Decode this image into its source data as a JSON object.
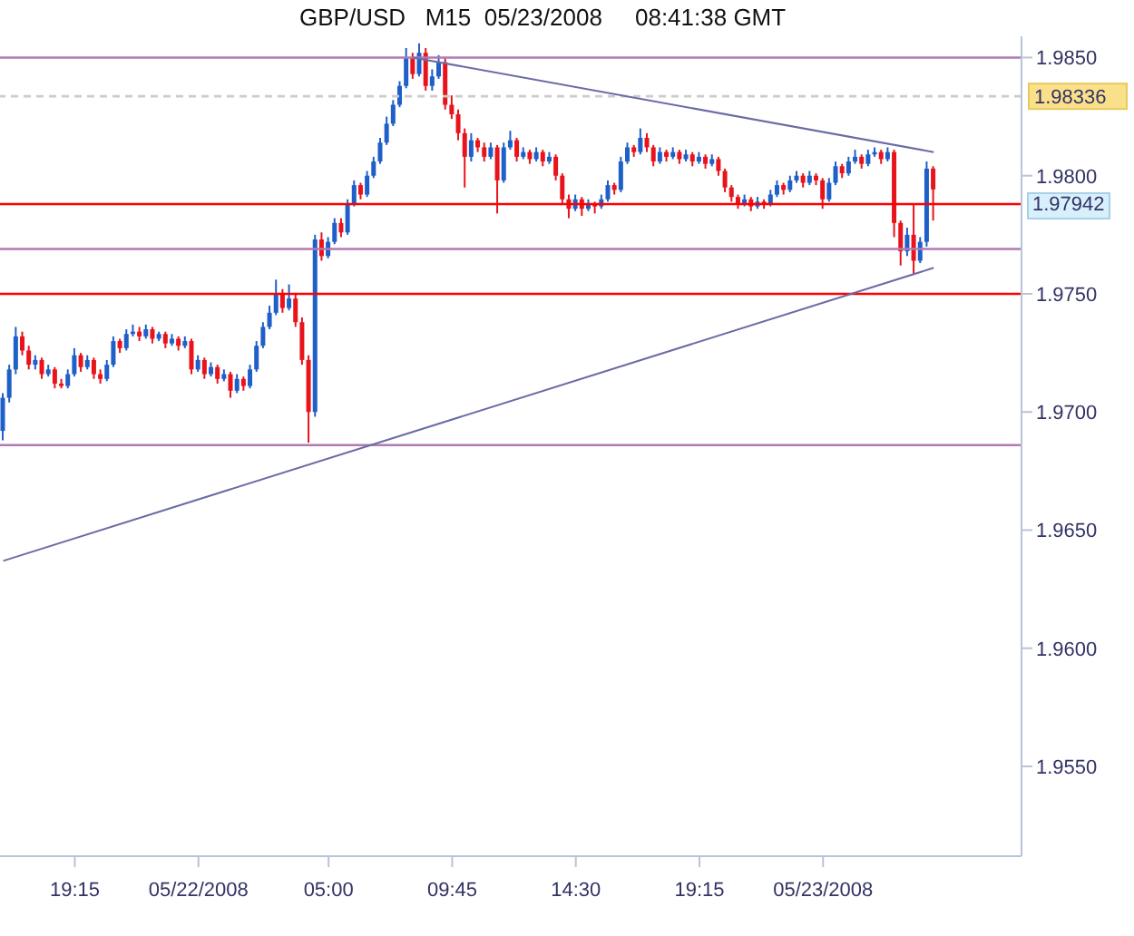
{
  "chart_data": {
    "type": "candlestick",
    "title": "GBP/USD   M15  05/23/2008     08:41:38 GMT",
    "categories": [
      null,
      null,
      null,
      null,
      null,
      null,
      null,
      null,
      null,
      null,
      null,
      "19:15",
      null,
      null,
      null,
      null,
      null,
      null,
      null,
      null,
      null,
      null,
      null,
      null,
      null,
      null,
      null,
      null,
      null,
      null,
      "05/22/2008",
      null,
      null,
      null,
      null,
      null,
      null,
      null,
      null,
      null,
      null,
      null,
      null,
      null,
      null,
      null,
      null,
      null,
      null,
      null,
      "05:00",
      null,
      null,
      null,
      null,
      null,
      null,
      null,
      null,
      null,
      null,
      null,
      null,
      null,
      null,
      null,
      null,
      null,
      null,
      "09:45",
      null,
      null,
      null,
      null,
      null,
      null,
      null,
      null,
      null,
      null,
      null,
      null,
      null,
      null,
      null,
      null,
      null,
      null,
      "14:30",
      null,
      null,
      null,
      null,
      null,
      null,
      null,
      null,
      null,
      null,
      null,
      null,
      null,
      null,
      null,
      null,
      null,
      null,
      "19:15",
      null,
      null,
      null,
      null,
      null,
      null,
      null,
      null,
      null,
      null,
      null,
      null,
      null,
      null,
      null,
      null,
      null,
      null,
      "05/23/2008",
      null,
      null,
      null,
      null,
      null,
      null,
      null,
      null,
      null,
      null,
      null,
      null,
      null,
      null,
      null,
      null,
      null
    ],
    "ohlc": [
      [
        1.9692,
        1.9708,
        1.9688,
        1.9706
      ],
      [
        1.9706,
        1.972,
        1.9704,
        1.9718
      ],
      [
        1.9718,
        1.9736,
        1.9716,
        1.9732
      ],
      [
        1.9732,
        1.9734,
        1.9724,
        1.9726
      ],
      [
        1.9726,
        1.9728,
        1.9718,
        1.972
      ],
      [
        1.972,
        1.9724,
        1.9718,
        1.9722
      ],
      [
        1.9722,
        1.9723,
        1.9714,
        1.9716
      ],
      [
        1.9716,
        1.972,
        1.9715,
        1.9718
      ],
      [
        1.9718,
        1.9719,
        1.971,
        1.9712
      ],
      [
        1.9712,
        1.9714,
        1.971,
        1.9711
      ],
      [
        1.9711,
        1.9718,
        1.971,
        1.9716
      ],
      [
        1.9716,
        1.9727,
        1.9715,
        1.9724
      ],
      [
        1.9724,
        1.9725,
        1.9717,
        1.9719
      ],
      [
        1.9719,
        1.9724,
        1.9718,
        1.9722
      ],
      [
        1.9722,
        1.9723,
        1.9714,
        1.9716
      ],
      [
        1.9716,
        1.9718,
        1.9712,
        1.9714
      ],
      [
        1.9714,
        1.9722,
        1.9713,
        1.972
      ],
      [
        1.972,
        1.9732,
        1.9719,
        1.973
      ],
      [
        1.973,
        1.9731,
        1.9725,
        1.9727
      ],
      [
        1.9727,
        1.9735,
        1.9726,
        1.9733
      ],
      [
        1.9733,
        1.9737,
        1.9732,
        1.9734
      ],
      [
        1.9734,
        1.9736,
        1.973,
        1.9732
      ],
      [
        1.9732,
        1.9737,
        1.9731,
        1.9735
      ],
      [
        1.9735,
        1.9736,
        1.9729,
        1.9731
      ],
      [
        1.9731,
        1.9734,
        1.973,
        1.9733
      ],
      [
        1.9733,
        1.9734,
        1.9727,
        1.9729
      ],
      [
        1.9729,
        1.9733,
        1.9728,
        1.9731
      ],
      [
        1.9731,
        1.9732,
        1.9726,
        1.9728
      ],
      [
        1.9728,
        1.9732,
        1.9727,
        1.973
      ],
      [
        1.973,
        1.9731,
        1.9716,
        1.9718
      ],
      [
        1.9718,
        1.9724,
        1.9717,
        1.9722
      ],
      [
        1.9722,
        1.9723,
        1.9714,
        1.9716
      ],
      [
        1.9716,
        1.9721,
        1.9715,
        1.9719
      ],
      [
        1.9719,
        1.972,
        1.9712,
        1.9714
      ],
      [
        1.9714,
        1.9718,
        1.9713,
        1.9716
      ],
      [
        1.9716,
        1.9717,
        1.9706,
        1.9709
      ],
      [
        1.9709,
        1.9716,
        1.9708,
        1.9714
      ],
      [
        1.9714,
        1.9715,
        1.9709,
        1.9711
      ],
      [
        1.9711,
        1.972,
        1.971,
        1.9718
      ],
      [
        1.9718,
        1.973,
        1.9717,
        1.9728
      ],
      [
        1.9728,
        1.9738,
        1.9727,
        1.9736
      ],
      [
        1.9736,
        1.9745,
        1.9735,
        1.9742
      ],
      [
        1.9742,
        1.9756,
        1.9741,
        1.975
      ],
      [
        1.975,
        1.9752,
        1.9742,
        1.9744
      ],
      [
        1.9744,
        1.9754,
        1.9743,
        1.9748
      ],
      [
        1.9748,
        1.975,
        1.9736,
        1.9738
      ],
      [
        1.9738,
        1.974,
        1.972,
        1.9722
      ],
      [
        1.9722,
        1.9724,
        1.9687,
        1.97
      ],
      [
        1.97,
        1.9775,
        1.9698,
        1.9773
      ],
      [
        1.9773,
        1.9776,
        1.9764,
        1.9766
      ],
      [
        1.9766,
        1.9774,
        1.9765,
        1.9772
      ],
      [
        1.9772,
        1.9782,
        1.9771,
        1.978
      ],
      [
        1.978,
        1.9782,
        1.9774,
        1.9776
      ],
      [
        1.9776,
        1.979,
        1.9775,
        1.9788
      ],
      [
        1.9788,
        1.9798,
        1.9787,
        1.9796
      ],
      [
        1.9796,
        1.9797,
        1.979,
        1.9792
      ],
      [
        1.9792,
        1.9802,
        1.9791,
        1.98
      ],
      [
        1.98,
        1.9808,
        1.9799,
        1.9806
      ],
      [
        1.9806,
        1.9816,
        1.9805,
        1.9814
      ],
      [
        1.9814,
        1.9825,
        1.9813,
        1.9822
      ],
      [
        1.9822,
        1.9832,
        1.9821,
        1.983
      ],
      [
        1.983,
        1.984,
        1.9829,
        1.9838
      ],
      [
        1.9838,
        1.9854,
        1.9837,
        1.985
      ],
      [
        1.985,
        1.9852,
        1.9841,
        1.9843
      ],
      [
        1.9843,
        1.9856,
        1.9842,
        1.9852
      ],
      [
        1.9852,
        1.9854,
        1.9836,
        1.9838
      ],
      [
        1.9838,
        1.9845,
        1.9836,
        1.9842
      ],
      [
        1.9842,
        1.9851,
        1.9841,
        1.9848
      ],
      [
        1.9848,
        1.985,
        1.9828,
        1.983
      ],
      [
        1.983,
        1.9834,
        1.9824,
        1.9826
      ],
      [
        1.9826,
        1.9828,
        1.9815,
        1.9818
      ],
      [
        1.9818,
        1.982,
        1.9795,
        1.9808
      ],
      [
        1.9808,
        1.9818,
        1.9806,
        1.9815
      ],
      [
        1.9815,
        1.9816,
        1.981,
        1.9812
      ],
      [
        1.9812,
        1.9814,
        1.9806,
        1.9808
      ],
      [
        1.9808,
        1.9814,
        1.9807,
        1.9812
      ],
      [
        1.9812,
        1.9813,
        1.9784,
        1.9798
      ],
      [
        1.9798,
        1.9814,
        1.9797,
        1.9812
      ],
      [
        1.9812,
        1.9819,
        1.9811,
        1.9815
      ],
      [
        1.9815,
        1.9816,
        1.9806,
        1.9808
      ],
      [
        1.9808,
        1.9812,
        1.9807,
        1.981
      ],
      [
        1.981,
        1.9811,
        1.9805,
        1.9807
      ],
      [
        1.9807,
        1.9812,
        1.9806,
        1.981
      ],
      [
        1.981,
        1.9811,
        1.9804,
        1.9806
      ],
      [
        1.9806,
        1.981,
        1.9805,
        1.9808
      ],
      [
        1.9808,
        1.9809,
        1.9798,
        1.98
      ],
      [
        1.98,
        1.9801,
        1.9788,
        1.979
      ],
      [
        1.979,
        1.9792,
        1.9782,
        1.9786
      ],
      [
        1.9786,
        1.9792,
        1.9785,
        1.979
      ],
      [
        1.979,
        1.9791,
        1.9783,
        1.9786
      ],
      [
        1.9786,
        1.979,
        1.9785,
        1.9788
      ],
      [
        1.9788,
        1.9789,
        1.9784,
        1.9787
      ],
      [
        1.9787,
        1.9792,
        1.9786,
        1.979
      ],
      [
        1.979,
        1.9798,
        1.9789,
        1.9796
      ],
      [
        1.9796,
        1.9797,
        1.9792,
        1.9794
      ],
      [
        1.9794,
        1.9808,
        1.9793,
        1.9806
      ],
      [
        1.9806,
        1.9814,
        1.9805,
        1.9812
      ],
      [
        1.9812,
        1.9813,
        1.9808,
        1.981
      ],
      [
        1.981,
        1.982,
        1.9809,
        1.9816
      ],
      [
        1.9816,
        1.9818,
        1.981,
        1.9812
      ],
      [
        1.9812,
        1.9813,
        1.9804,
        1.9806
      ],
      [
        1.9806,
        1.9812,
        1.9805,
        1.981
      ],
      [
        1.981,
        1.9811,
        1.9806,
        1.9808
      ],
      [
        1.9808,
        1.9812,
        1.9807,
        1.981
      ],
      [
        1.981,
        1.9811,
        1.9805,
        1.9807
      ],
      [
        1.9807,
        1.9811,
        1.9806,
        1.9809
      ],
      [
        1.9809,
        1.981,
        1.9804,
        1.9806
      ],
      [
        1.9806,
        1.981,
        1.9805,
        1.9808
      ],
      [
        1.9808,
        1.9809,
        1.9803,
        1.9805
      ],
      [
        1.9805,
        1.9809,
        1.9804,
        1.9807
      ],
      [
        1.9807,
        1.9808,
        1.98,
        1.9802
      ],
      [
        1.9802,
        1.9803,
        1.9793,
        1.9795
      ],
      [
        1.9795,
        1.9796,
        1.9789,
        1.9791
      ],
      [
        1.9791,
        1.9792,
        1.9786,
        1.9788
      ],
      [
        1.9788,
        1.9792,
        1.9787,
        1.979
      ],
      [
        1.979,
        1.9791,
        1.9785,
        1.9787
      ],
      [
        1.9787,
        1.9791,
        1.9786,
        1.9789
      ],
      [
        1.9789,
        1.979,
        1.9786,
        1.9788
      ],
      [
        1.9788,
        1.9794,
        1.9787,
        1.9792
      ],
      [
        1.9792,
        1.9798,
        1.9791,
        1.9796
      ],
      [
        1.9796,
        1.9797,
        1.9792,
        1.9794
      ],
      [
        1.9794,
        1.98,
        1.9793,
        1.9798
      ],
      [
        1.9798,
        1.9802,
        1.9797,
        1.98
      ],
      [
        1.98,
        1.9801,
        1.9795,
        1.9797
      ],
      [
        1.9797,
        1.9802,
        1.9796,
        1.98
      ],
      [
        1.98,
        1.9801,
        1.9796,
        1.9798
      ],
      [
        1.9798,
        1.9799,
        1.9786,
        1.979
      ],
      [
        1.979,
        1.9799,
        1.9789,
        1.9797
      ],
      [
        1.9797,
        1.9806,
        1.9796,
        1.9804
      ],
      [
        1.9804,
        1.9805,
        1.9799,
        1.9801
      ],
      [
        1.9801,
        1.9808,
        1.98,
        1.9806
      ],
      [
        1.9806,
        1.9811,
        1.9805,
        1.9808
      ],
      [
        1.9808,
        1.9809,
        1.9803,
        1.9805
      ],
      [
        1.9805,
        1.9811,
        1.9804,
        1.9809
      ],
      [
        1.9809,
        1.9812,
        1.9808,
        1.981
      ],
      [
        1.981,
        1.9811,
        1.9805,
        1.9807
      ],
      [
        1.9807,
        1.9812,
        1.9806,
        1.981
      ],
      [
        1.981,
        1.9811,
        1.9774,
        1.978
      ],
      [
        1.978,
        1.9781,
        1.9762,
        1.9768
      ],
      [
        1.9768,
        1.9778,
        1.9766,
        1.9775
      ],
      [
        1.9775,
        1.9788,
        1.9758,
        1.9764
      ],
      [
        1.9764,
        1.9774,
        1.9763,
        1.9772
      ],
      [
        1.9772,
        1.9806,
        1.977,
        1.9803
      ],
      [
        1.9803,
        1.9804,
        1.9781,
        1.97942
      ]
    ],
    "colors": [
      "#1e5fc8",
      "#1e5fc8",
      "#1e5fc8",
      "#e8131b",
      "#e8131b",
      "#1e5fc8",
      "#e8131b",
      "#1e5fc8",
      "#e8131b",
      "#e8131b",
      "#1e5fc8",
      "#1e5fc8",
      "#e8131b",
      "#1e5fc8",
      "#e8131b",
      "#e8131b",
      "#1e5fc8",
      "#1e5fc8",
      "#e8131b",
      "#1e5fc8",
      "#1e5fc8",
      "#e8131b",
      "#1e5fc8",
      "#e8131b",
      "#1e5fc8",
      "#e8131b",
      "#1e5fc8",
      "#e8131b",
      "#1e5fc8",
      "#e8131b",
      "#1e5fc8",
      "#e8131b",
      "#1e5fc8",
      "#e8131b",
      "#1e5fc8",
      "#e8131b",
      "#1e5fc8",
      "#e8131b",
      "#1e5fc8",
      "#1e5fc8",
      "#1e5fc8",
      "#1e5fc8",
      "#1e5fc8",
      "#e8131b",
      "#1e5fc8",
      "#e8131b",
      "#e8131b",
      "#e8131b",
      "#1e5fc8",
      "#e8131b",
      "#1e5fc8",
      "#1e5fc8",
      "#e8131b",
      "#1e5fc8",
      "#1e5fc8",
      "#e8131b",
      "#1e5fc8",
      "#1e5fc8",
      "#1e5fc8",
      "#1e5fc8",
      "#1e5fc8",
      "#1e5fc8",
      "#1e5fc8",
      "#e8131b",
      "#1e5fc8",
      "#e8131b",
      "#1e5fc8",
      "#1e5fc8",
      "#e8131b",
      "#e8131b",
      "#e8131b",
      "#e8131b",
      "#1e5fc8",
      "#e8131b",
      "#e8131b",
      "#1e5fc8",
      "#e8131b",
      "#1e5fc8",
      "#1e5fc8",
      "#e8131b",
      "#1e5fc8",
      "#e8131b",
      "#1e5fc8",
      "#e8131b",
      "#1e5fc8",
      "#e8131b",
      "#e8131b",
      "#e8131b",
      "#1e5fc8",
      "#e8131b",
      "#1e5fc8",
      "#e8131b",
      "#1e5fc8",
      "#1e5fc8",
      "#e8131b",
      "#1e5fc8",
      "#1e5fc8",
      "#e8131b",
      "#1e5fc8",
      "#e8131b",
      "#e8131b",
      "#1e5fc8",
      "#e8131b",
      "#1e5fc8",
      "#e8131b",
      "#1e5fc8",
      "#e8131b",
      "#1e5fc8",
      "#e8131b",
      "#1e5fc8",
      "#e8131b",
      "#e8131b",
      "#e8131b",
      "#e8131b",
      "#1e5fc8",
      "#e8131b",
      "#1e5fc8",
      "#e8131b",
      "#1e5fc8",
      "#1e5fc8",
      "#e8131b",
      "#1e5fc8",
      "#1e5fc8",
      "#e8131b",
      "#1e5fc8",
      "#e8131b",
      "#e8131b",
      "#1e5fc8",
      "#1e5fc8",
      "#e8131b",
      "#1e5fc8",
      "#1e5fc8",
      "#e8131b",
      "#1e5fc8",
      "#1e5fc8",
      "#e8131b",
      "#1e5fc8",
      "#e8131b",
      "#e8131b",
      "#1e5fc8",
      "#e8131b",
      "#1e5fc8",
      "#1e5fc8",
      "#e8131b"
    ],
    "series": [
      {
        "type": "line",
        "color": "#6b6ba6",
        "values": [
          null,
          null,
          null,
          null,
          null,
          null,
          null,
          null,
          null,
          null,
          null,
          null,
          null,
          null,
          null,
          null,
          null,
          null,
          null,
          null,
          null,
          null,
          null,
          null,
          null,
          null,
          null,
          null,
          null,
          null,
          null,
          null,
          null,
          null,
          null,
          null,
          null,
          null,
          null,
          null,
          null,
          null,
          null,
          null,
          null,
          null,
          null,
          null,
          null,
          null,
          null,
          null,
          null,
          null,
          null,
          null,
          null,
          null,
          null,
          null,
          null,
          null,
          null,
          1.985,
          null,
          null,
          null,
          null,
          null,
          null,
          null,
          null,
          null,
          null,
          null,
          null,
          null,
          null,
          null,
          null,
          null,
          null,
          null,
          null,
          null,
          null,
          null,
          null,
          null,
          null,
          null,
          null,
          null,
          null,
          null,
          null,
          null,
          null,
          null,
          null,
          null,
          null,
          null,
          null,
          null,
          null,
          null,
          null,
          null,
          null,
          null,
          null,
          null,
          null,
          null,
          null,
          null,
          null,
          null,
          null,
          null,
          null,
          null,
          null,
          null,
          null,
          null,
          null,
          null,
          null,
          null,
          null,
          null,
          null,
          null,
          null,
          null,
          null,
          null,
          null,
          null,
          null,
          null,
          1.981
        ]
      },
      {
        "type": "line",
        "color": "#6b6ba6",
        "values": [
          1.9637,
          null,
          null,
          null,
          null,
          null,
          null,
          null,
          null,
          null,
          null,
          null,
          null,
          null,
          null,
          null,
          null,
          null,
          null,
          null,
          null,
          null,
          null,
          null,
          null,
          null,
          null,
          null,
          null,
          null,
          null,
          null,
          null,
          null,
          null,
          null,
          null,
          null,
          null,
          null,
          null,
          null,
          null,
          null,
          null,
          null,
          null,
          null,
          null,
          null,
          null,
          null,
          null,
          null,
          null,
          null,
          null,
          null,
          null,
          null,
          null,
          null,
          null,
          null,
          null,
          null,
          null,
          null,
          null,
          null,
          null,
          null,
          null,
          null,
          null,
          null,
          null,
          null,
          null,
          null,
          null,
          null,
          null,
          null,
          null,
          null,
          null,
          null,
          null,
          null,
          null,
          null,
          null,
          null,
          null,
          null,
          null,
          null,
          null,
          null,
          null,
          null,
          null,
          null,
          null,
          null,
          null,
          null,
          null,
          null,
          null,
          null,
          null,
          null,
          null,
          null,
          null,
          null,
          null,
          null,
          null,
          null,
          null,
          null,
          null,
          null,
          null,
          null,
          null,
          null,
          null,
          null,
          null,
          null,
          null,
          null,
          null,
          null,
          null,
          null,
          null,
          null,
          null,
          1.9761
        ]
      }
    ],
    "ylim": [
      1.9512,
      1.9859
    ],
    "yticks": [
      {
        "value": 1.955,
        "label": "1.9550"
      },
      {
        "value": 1.96,
        "label": "1.9600"
      },
      {
        "value": 1.965,
        "label": "1.9650"
      },
      {
        "value": 1.97,
        "label": "1.9700"
      },
      {
        "value": 1.975,
        "label": "1.9750"
      },
      {
        "value": 1.98,
        "label": "1.9800"
      },
      {
        "value": 1.985,
        "label": "1.9850"
      }
    ],
    "ref_lines": [
      {
        "axis": "y",
        "value": 1.985,
        "color": "#b07ab0"
      },
      {
        "axis": "y",
        "value": 1.9788,
        "color": "#ff0000"
      },
      {
        "axis": "y",
        "value": 1.9769,
        "color": "#b07ab0"
      },
      {
        "axis": "y",
        "value": 1.975,
        "color": "#ff0000"
      },
      {
        "axis": "y",
        "value": 1.9686,
        "color": "#b07ab0"
      },
      {
        "axis": "y",
        "value": 1.98336,
        "label": "1.98336",
        "color": "#cccccc",
        "line_style": "dashed"
      }
    ],
    "annotations": [
      "1.97942"
    ]
  }
}
